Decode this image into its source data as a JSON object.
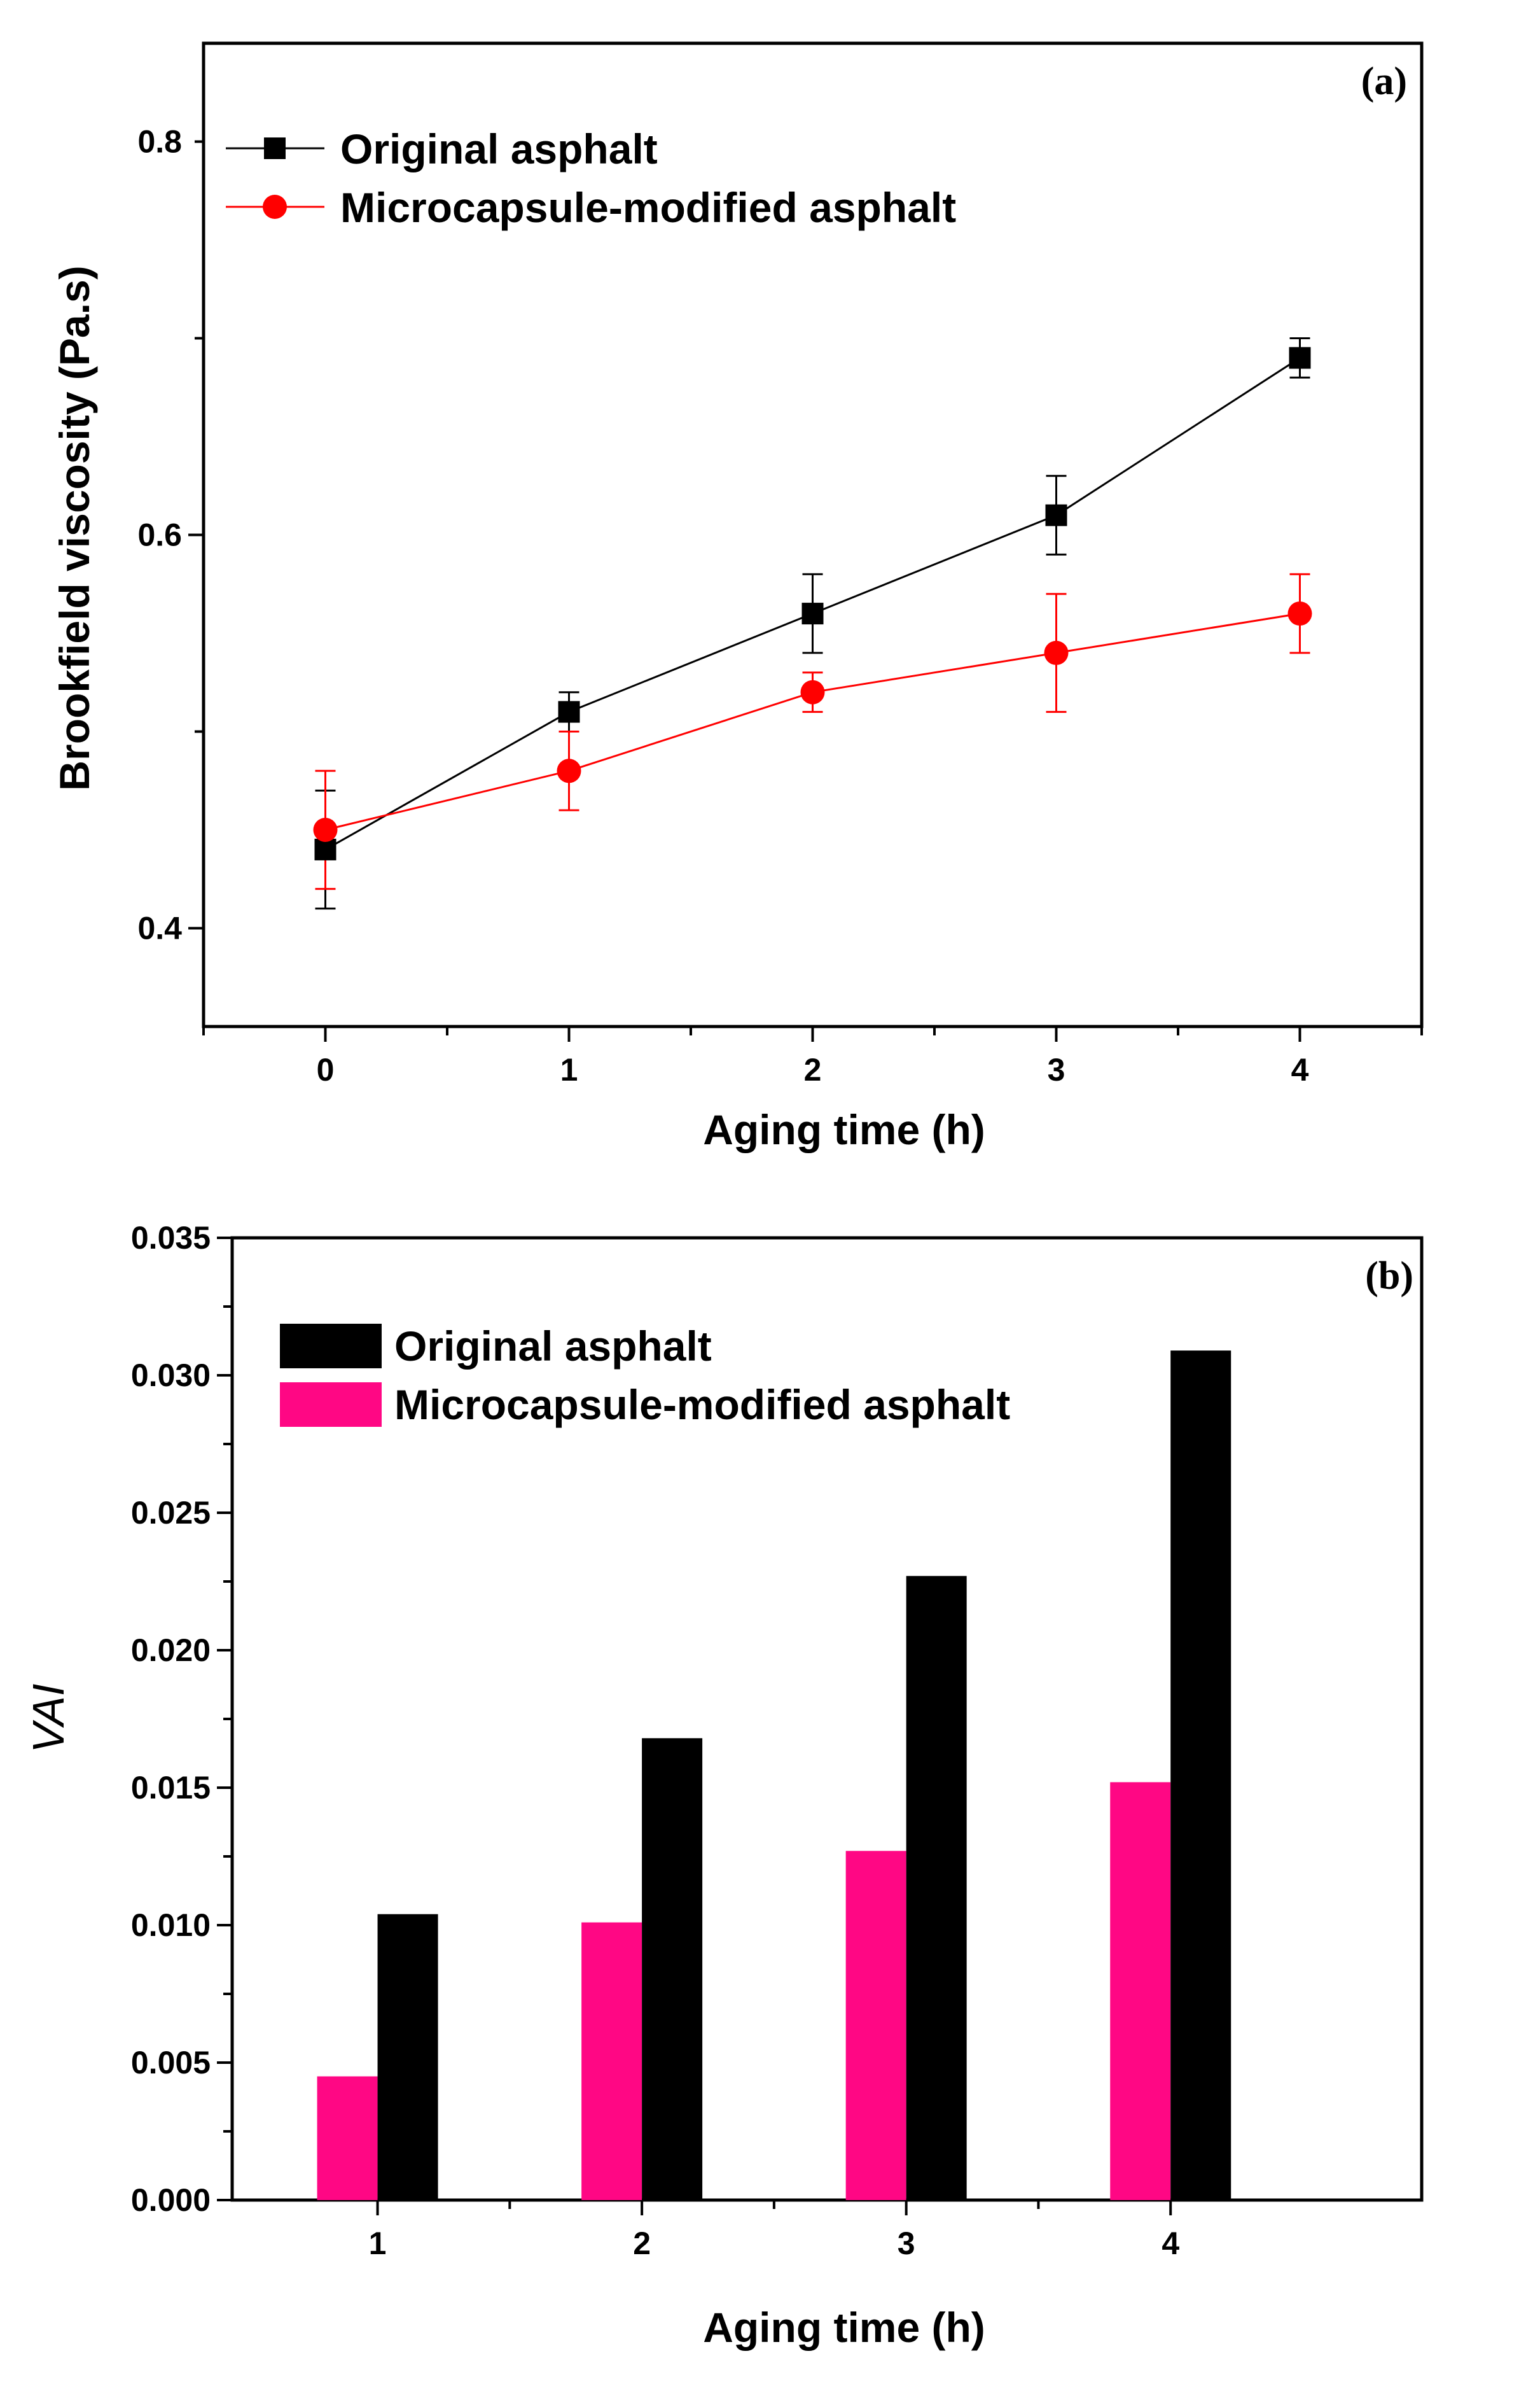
{
  "chart_data": [
    {
      "type": "line",
      "panel_label": "(a)",
      "xlabel": "Aging time (h)",
      "ylabel": "Brookfield viscosity (Pa.s)",
      "xlim": [
        -0.5,
        4.5
      ],
      "ylim": [
        0.35,
        0.85
      ],
      "x_ticks": [
        "0",
        "1",
        "2",
        "3",
        "4"
      ],
      "y_ticks": [
        "0.4",
        "0.6",
        "0.8"
      ],
      "legend_position": "top-left",
      "series": [
        {
          "name": "Original asphalt",
          "color": "#000000",
          "marker": "square",
          "x": [
            0,
            1,
            2,
            3,
            4
          ],
          "values": [
            0.44,
            0.51,
            0.56,
            0.61,
            0.69
          ],
          "errors": [
            0.03,
            0.01,
            0.02,
            0.02,
            0.01
          ]
        },
        {
          "name": "Microcapsule-modified asphalt",
          "color": "#ff0000",
          "marker": "circle",
          "x": [
            0,
            1,
            2,
            3,
            4
          ],
          "values": [
            0.45,
            0.48,
            0.52,
            0.54,
            0.56
          ],
          "errors": [
            0.03,
            0.02,
            0.01,
            0.03,
            0.02
          ]
        }
      ]
    },
    {
      "type": "bar",
      "panel_label": "(b)",
      "xlabel": "Aging time (h)",
      "ylabel": "VAI",
      "categories": [
        "1",
        "2",
        "3",
        "4"
      ],
      "ylim": [
        0,
        0.035
      ],
      "y_ticks": [
        "0.000",
        "0.005",
        "0.010",
        "0.015",
        "0.020",
        "0.025",
        "0.030",
        "0.035"
      ],
      "legend_position": "top-left",
      "series": [
        {
          "name": "Original asphalt",
          "color": "#000000",
          "values": [
            0.0104,
            0.0168,
            0.0227,
            0.0309
          ]
        },
        {
          "name": "Microcapsule-modified asphalt",
          "color": "#ff0784",
          "values": [
            0.0045,
            0.0101,
            0.0127,
            0.0152
          ]
        }
      ]
    }
  ]
}
